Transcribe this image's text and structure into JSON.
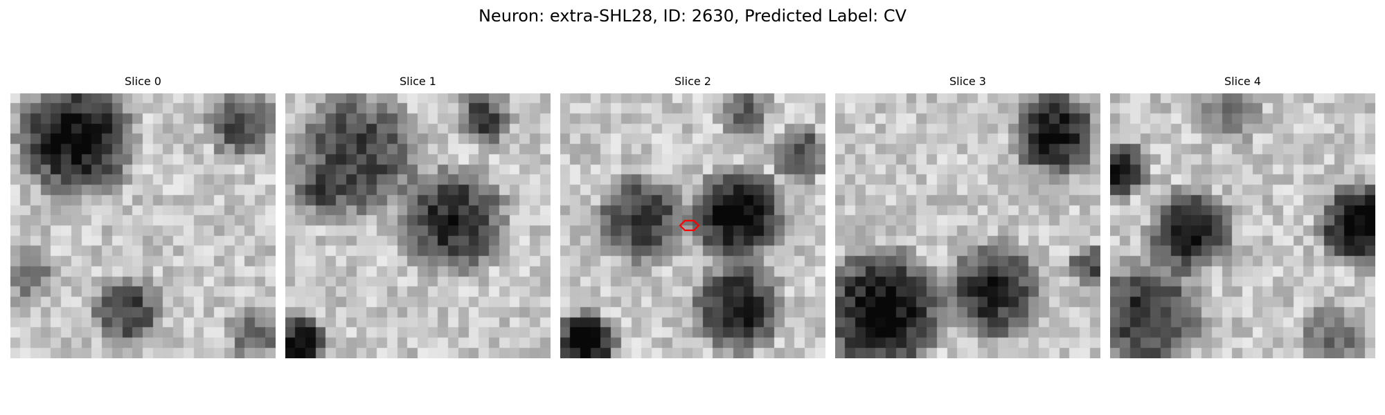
{
  "figure": {
    "title": "Neuron: extra-SHL28, ID: 2630, Predicted Label: CV"
  },
  "panels": [
    {
      "title": "Slice 0"
    },
    {
      "title": "Slice 1"
    },
    {
      "title": "Slice 2"
    },
    {
      "title": "Slice 3"
    },
    {
      "title": "Slice 4"
    }
  ],
  "image_description": {
    "grid_cells": 26,
    "colormap": "grayscale",
    "marker_color": "#ff0000",
    "marker_shape": "hexagon",
    "marker_panel_index": 2
  }
}
